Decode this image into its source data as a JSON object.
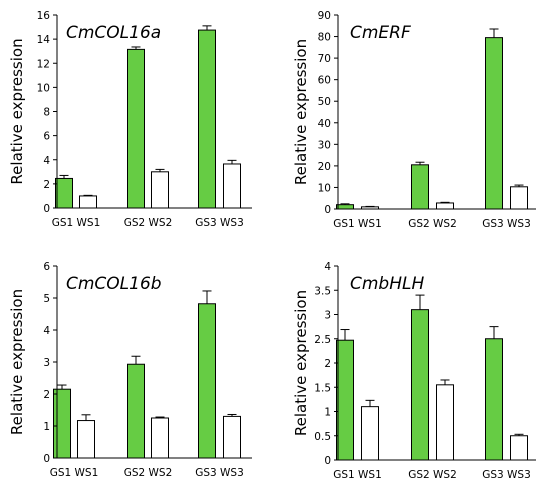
{
  "colors": {
    "green": "#66CC44",
    "white": "#FFFFFF",
    "stroke": "#000000"
  },
  "chart_data": [
    {
      "type": "bar",
      "title": "CmCOL16a",
      "ylabel": "Relative expression",
      "ylim": [
        0,
        16
      ],
      "yticks": [
        "0",
        "2",
        "4",
        "6",
        "8",
        "10",
        "12",
        "14",
        "16"
      ],
      "grid": false,
      "groups": [
        "GS1 WS1",
        "GS2 WS2",
        "GS3 WS3"
      ],
      "series": [
        {
          "color": "#66CC44",
          "values": [
            2.45,
            13.15,
            14.75
          ],
          "errors": [
            0.25,
            0.2,
            0.35
          ]
        },
        {
          "color": "#FFFFFF",
          "values": [
            1.0,
            3.0,
            3.65
          ],
          "errors": [
            0.05,
            0.2,
            0.3
          ]
        }
      ]
    },
    {
      "type": "bar",
      "title": "CmERF",
      "ylabel": "Relative expression",
      "ylim": [
        0,
        90
      ],
      "yticks": [
        "0",
        "10",
        "20",
        "30",
        "40",
        "50",
        "60",
        "70",
        "80",
        "90"
      ],
      "grid": false,
      "groups": [
        "GS1 WS1",
        "GS2 WS2",
        "GS3 WS3"
      ],
      "series": [
        {
          "color": "#66CC44",
          "values": [
            2.0,
            20.5,
            79.5
          ],
          "errors": [
            0.4,
            1.2,
            4.0
          ]
        },
        {
          "color": "#FFFFFF",
          "values": [
            1.0,
            2.8,
            10.3
          ],
          "errors": [
            0.2,
            0.3,
            0.8
          ]
        }
      ]
    },
    {
      "type": "bar",
      "title": "CmCOL16b",
      "ylabel": "Relative expression",
      "ylim": [
        0,
        6
      ],
      "yticks": [
        "0",
        "1",
        "2",
        "3",
        "4",
        "5",
        "6"
      ],
      "grid": false,
      "groups": [
        "GS1 WS1",
        "GS2 WS2",
        "GS3 WS3"
      ],
      "series": [
        {
          "color": "#66CC44",
          "values": [
            2.15,
            2.93,
            4.82
          ],
          "errors": [
            0.13,
            0.25,
            0.4
          ]
        },
        {
          "color": "#FFFFFF",
          "values": [
            1.17,
            1.25,
            1.3
          ],
          "errors": [
            0.18,
            0.03,
            0.06
          ]
        }
      ]
    },
    {
      "type": "bar",
      "title": "CmbHLH",
      "ylabel": "Relative expression",
      "ylim": [
        0,
        4
      ],
      "yticks": [
        "0",
        "0.5",
        "1",
        "1.5",
        "2",
        "2.5",
        "3",
        "3.5",
        "4"
      ],
      "grid": false,
      "groups": [
        "GS1 WS1",
        "GS2 WS2",
        "GS3 WS3"
      ],
      "series": [
        {
          "color": "#66CC44",
          "values": [
            2.47,
            3.1,
            2.5
          ],
          "errors": [
            0.22,
            0.3,
            0.25
          ]
        },
        {
          "color": "#FFFFFF",
          "values": [
            1.1,
            1.55,
            0.5
          ],
          "errors": [
            0.13,
            0.1,
            0.03
          ]
        }
      ]
    }
  ]
}
